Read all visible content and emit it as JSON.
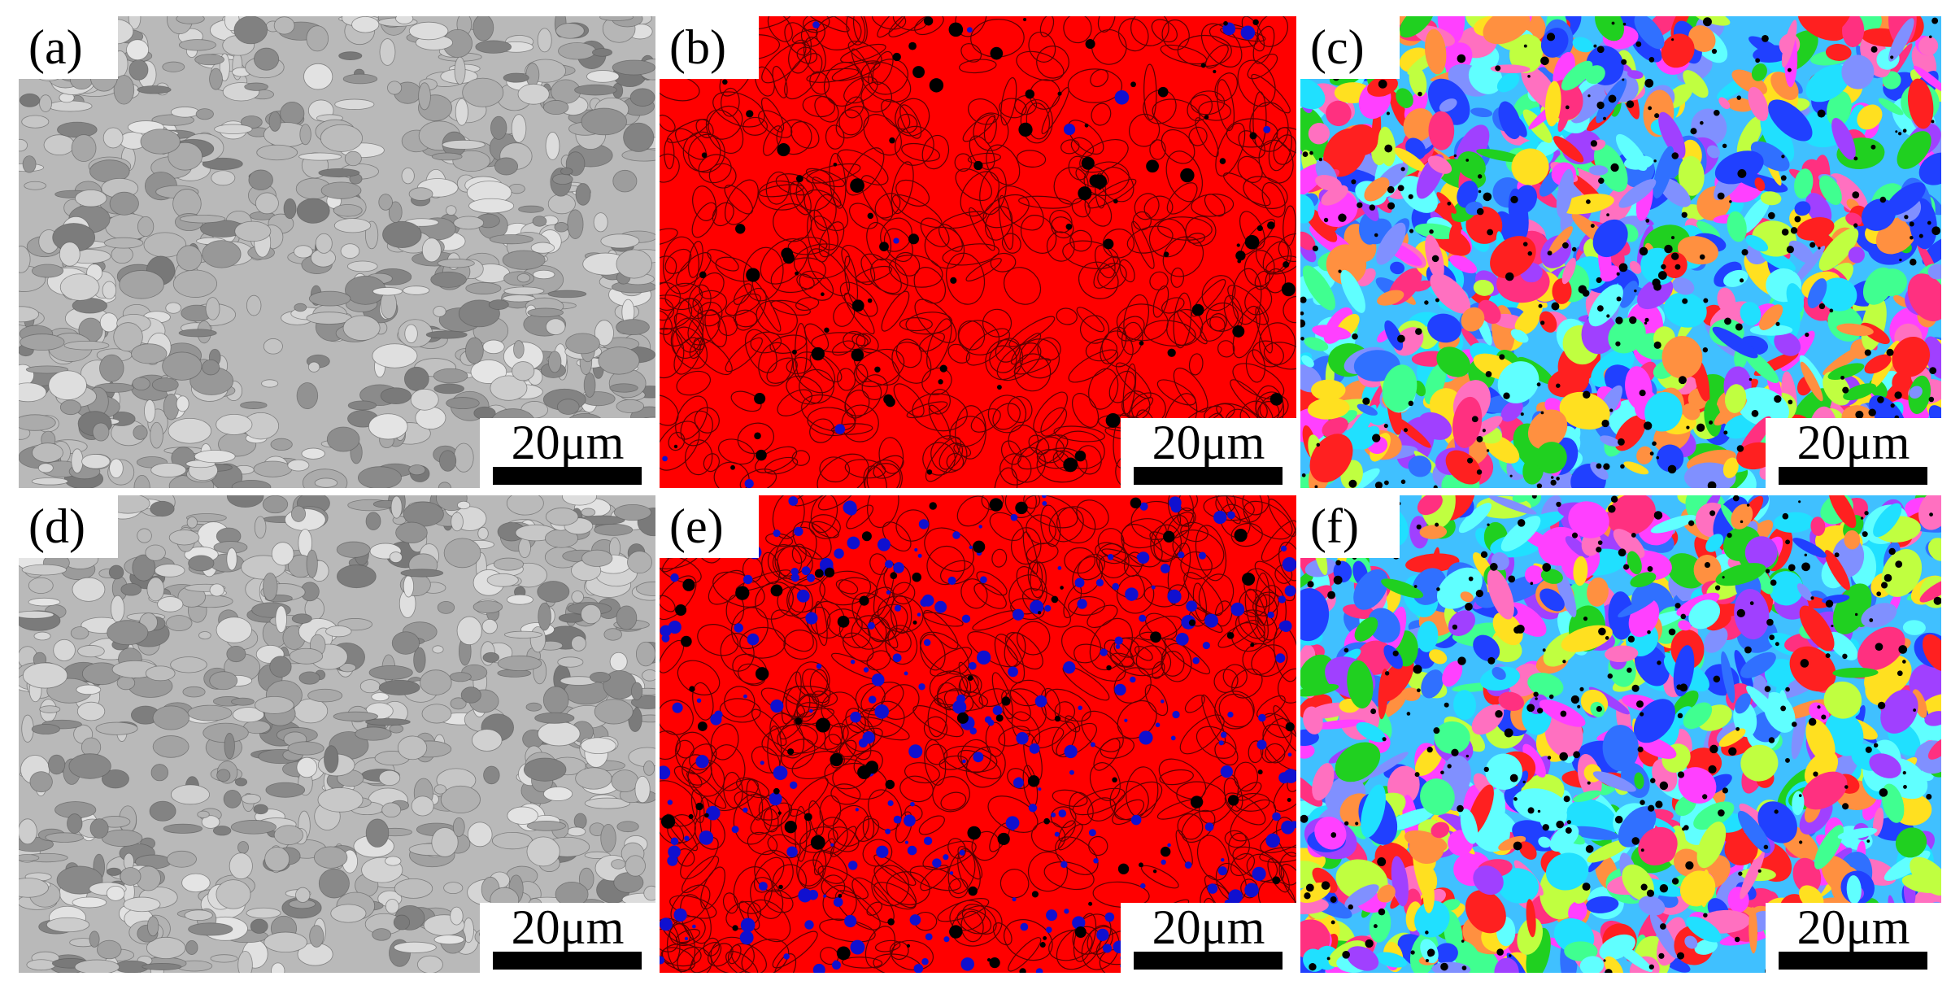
{
  "panels": [
    {
      "label": "(a)",
      "scale_bar": "20μm"
    },
    {
      "label": "(b)",
      "scale_bar": "20μm"
    },
    {
      "label": "(c)",
      "scale_bar": "20μm"
    },
    {
      "label": "(d)",
      "scale_bar": "20μm"
    },
    {
      "label": "(e)",
      "scale_bar": "20μm"
    },
    {
      "label": "(f)",
      "scale_bar": "20μm"
    }
  ]
}
